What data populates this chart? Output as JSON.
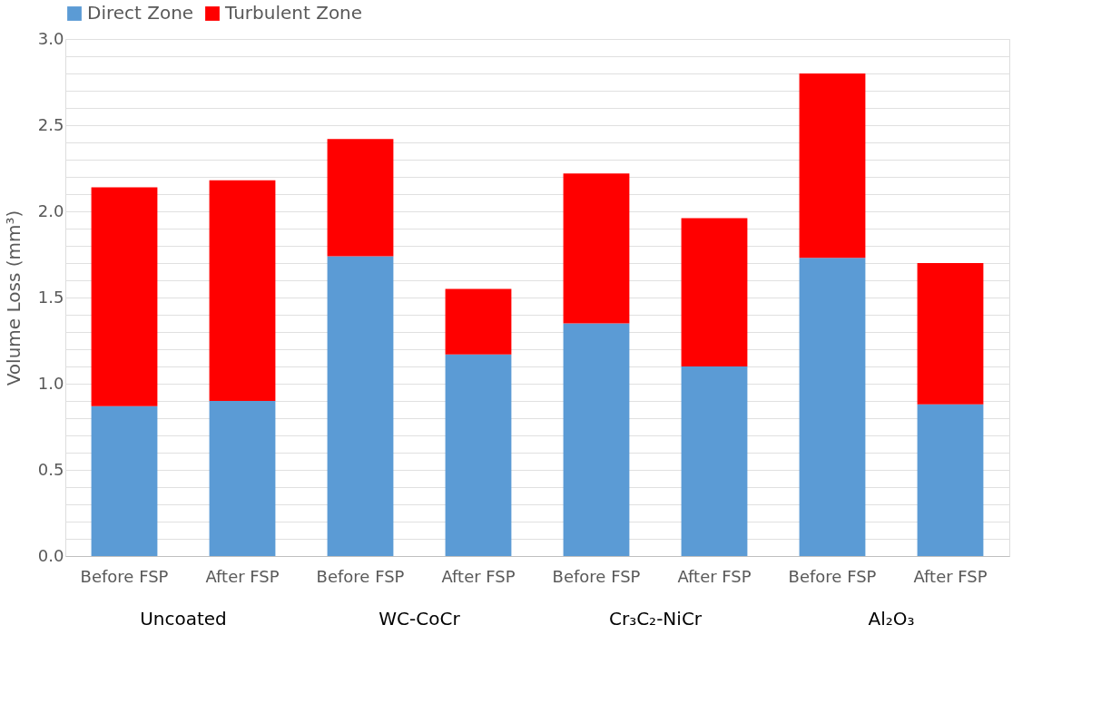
{
  "chart_data": {
    "type": "bar",
    "stacked": true,
    "ylabel": "Volume Loss (mm³)",
    "categories": [
      "Before FSP",
      "After FSP",
      "Before FSP",
      "After FSP",
      "Before FSP",
      "After FSP",
      "Before FSP",
      "After FSP"
    ],
    "annotations": [
      "Uncoated",
      "WC-CoCr",
      "Cr₃C₂-NiCr",
      "Al₂O₃"
    ],
    "series": [
      {
        "name": "Direct Zone",
        "color": "#5b9bd5",
        "values": [
          0.87,
          0.9,
          1.74,
          1.17,
          1.35,
          1.1,
          1.73,
          0.88
        ]
      },
      {
        "name": "Turbulent Zone",
        "color": "#ff0000",
        "values": [
          1.27,
          1.28,
          0.68,
          0.38,
          0.87,
          0.86,
          1.07,
          0.82
        ]
      }
    ],
    "ylim": [
      0,
      3.0
    ],
    "yticks": [
      {
        "value": 0,
        "label": "0.0"
      },
      {
        "value": 0.1,
        "label": null
      },
      {
        "value": 0.2,
        "label": null
      },
      {
        "value": 0.3,
        "label": null
      },
      {
        "value": 0.4,
        "label": null
      },
      {
        "value": 0.5,
        "label": "0.5"
      },
      {
        "value": 0.6,
        "label": null
      },
      {
        "value": 0.7,
        "label": null
      },
      {
        "value": 0.8,
        "label": null
      },
      {
        "value": 0.9,
        "label": null
      },
      {
        "value": 1.0,
        "label": "1.0"
      },
      {
        "value": 1.1,
        "label": null
      },
      {
        "value": 1.2,
        "label": null
      },
      {
        "value": 1.3,
        "label": null
      },
      {
        "value": 1.4,
        "label": null
      },
      {
        "value": 1.5,
        "label": "1.5"
      },
      {
        "value": 1.6,
        "label": null
      },
      {
        "value": 1.7,
        "label": null
      },
      {
        "value": 1.8,
        "label": null
      },
      {
        "value": 1.9,
        "label": null
      },
      {
        "value": 2.0,
        "label": "2.0"
      },
      {
        "value": 2.1,
        "label": null
      },
      {
        "value": 2.2,
        "label": null
      },
      {
        "value": 2.3,
        "label": null
      },
      {
        "value": 2.4,
        "label": null
      },
      {
        "value": 2.5,
        "label": "2.5"
      },
      {
        "value": 2.6,
        "label": null
      },
      {
        "value": 2.7,
        "label": null
      },
      {
        "value": 2.8,
        "label": null
      },
      {
        "value": 2.9,
        "label": null
      },
      {
        "value": 3.0,
        "label": "3.0"
      }
    ],
    "grid": "y",
    "legend": "top"
  }
}
